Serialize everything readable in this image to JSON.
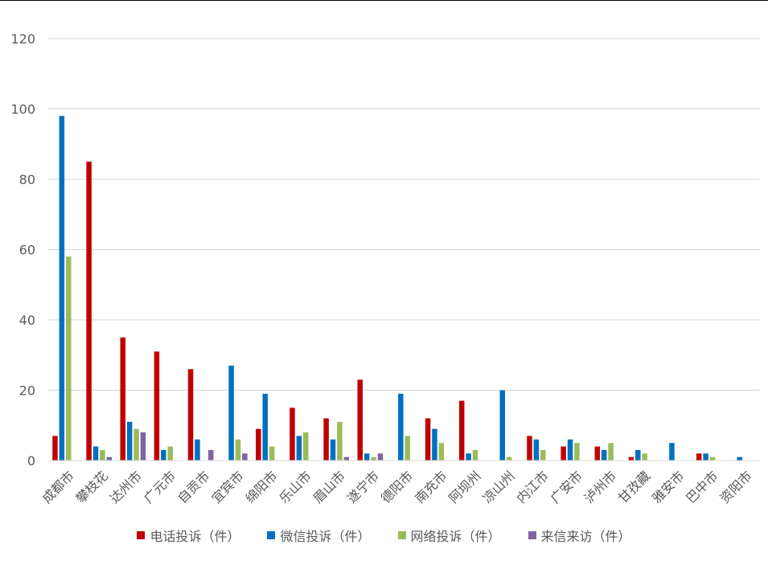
{
  "chart_data": {
    "type": "bar",
    "categories": [
      "成都市",
      "攀枝花",
      "达州市",
      "广元市",
      "自贡市",
      "宜宾市",
      "绵阳市",
      "乐山市",
      "眉山市",
      "遂宁市",
      "德阳市",
      "南充市",
      "阿坝州",
      "凉山州",
      "内江市",
      "广安市",
      "泸州市",
      "甘孜藏",
      "雅安市",
      "巴中市",
      "资阳市"
    ],
    "series": [
      {
        "name": "电话投诉（件）",
        "color": "#C00000",
        "values": [
          7,
          85,
          35,
          31,
          26,
          0,
          9,
          15,
          12,
          23,
          0,
          12,
          17,
          0,
          7,
          4,
          4,
          1,
          0,
          2,
          0
        ]
      },
      {
        "name": "微信投诉（件）",
        "color": "#0070C0",
        "values": [
          98,
          4,
          11,
          3,
          6,
          27,
          19,
          7,
          6,
          2,
          19,
          9,
          2,
          20,
          6,
          6,
          3,
          3,
          5,
          2,
          1
        ]
      },
      {
        "name": "网络投诉（件）",
        "color": "#9BBB59",
        "values": [
          58,
          3,
          9,
          4,
          0,
          6,
          4,
          8,
          11,
          1,
          7,
          5,
          3,
          1,
          3,
          5,
          5,
          2,
          0,
          1,
          0
        ]
      },
      {
        "name": "来信来访（件）",
        "color": "#8064A2",
        "values": [
          0,
          1,
          8,
          0,
          3,
          2,
          0,
          0,
          1,
          2,
          0,
          0,
          0,
          0,
          0,
          0,
          0,
          0,
          0,
          0,
          0
        ]
      }
    ],
    "ylim": [
      0,
      120
    ],
    "yticks": [
      0,
      20,
      40,
      60,
      80,
      100,
      120
    ],
    "grid": true,
    "legend": "bottom"
  },
  "legend": {
    "items": [
      {
        "label": "电话投诉（件）",
        "color": "#C00000"
      },
      {
        "label": "微信投诉（件）",
        "color": "#0070C0"
      },
      {
        "label": "网络投诉（件）",
        "color": "#9BBB59"
      },
      {
        "label": "来信来访（件）",
        "color": "#8064A2"
      }
    ]
  }
}
